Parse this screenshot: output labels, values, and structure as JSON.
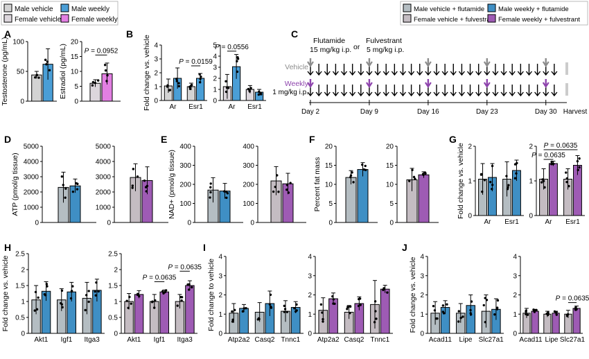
{
  "colors": {
    "male_vehicle": "#d3d3d3",
    "male_weekly": "#4a9ed6",
    "female_vehicle": "#dcd6dc",
    "female_weekly": "#e27fe2",
    "flut_vehicle": "#b4bdc2",
    "flut_weekly": "#3f8fc4",
    "fulv_vehicle": "#c4bcc2",
    "fulv_weekly": "#9e5bb4",
    "vehicle_arrow": "#8c8c8c",
    "weekly_arrow": "#8e44ad"
  },
  "legend_left": [
    {
      "label": "Male vehicle",
      "color": "#d3d3d3"
    },
    {
      "label": "Male weekly",
      "color": "#4a9ed6"
    },
    {
      "label": "Female vehicle",
      "color": "#dcd6dc"
    },
    {
      "label": "Female weekly",
      "color": "#e27fe2"
    }
  ],
  "legend_right": [
    {
      "label": "Male vehicle + flutamide",
      "color": "#b4bdc2"
    },
    {
      "label": "Male weekly + flutamide",
      "color": "#3f8fc4"
    },
    {
      "label": "Female vehicle + fulvestrant",
      "color": "#c4bcc2"
    },
    {
      "label": "Female weekly + fulvestrant",
      "color": "#9e5bb4"
    }
  ],
  "panel_C": {
    "letter": "C",
    "drug1_lines": [
      "Flutamide",
      "15 mg/kg i.p."
    ],
    "or": "or",
    "drug2_lines": [
      "Fulvestrant",
      "5 mg/kg i.p."
    ],
    "vehicle_label": "Vehicle",
    "weekly_label": "Weekly",
    "weekly_dose": "1 mg/kg i.p.",
    "days": [
      "Day 2",
      "Day 9",
      "Day 16",
      "Day 23",
      "Day 30"
    ],
    "harvest": "Harvest"
  },
  "chart_data": [
    {
      "panel": "A",
      "type": "bar",
      "ylabel": "Testosterone (pg/mL)",
      "ylim": [
        0,
        100
      ],
      "yticks": [
        0,
        50,
        100
      ],
      "categories": [
        ""
      ],
      "series": [
        {
          "values": [
            44
          ],
          "err": [
            6
          ],
          "colorKey": "male_vehicle"
        },
        {
          "values": [
            62
          ],
          "err": [
            26
          ],
          "colorKey": "male_weekly"
        }
      ],
      "annotations": []
    },
    {
      "panel": "A",
      "type": "bar",
      "ylabel": "Estradiol (pg/mL)",
      "ylim": [
        0,
        20
      ],
      "yticks": [
        0,
        5,
        10,
        15,
        20
      ],
      "categories": [
        ""
      ],
      "series": [
        {
          "values": [
            6
          ],
          "err": [
            1.2
          ],
          "colorKey": "female_vehicle"
        },
        {
          "values": [
            9.2
          ],
          "err": [
            3.6
          ],
          "colorKey": "female_weekly"
        }
      ],
      "annotations": [
        {
          "text": "P = 0.0952",
          "italicP": true,
          "y": 15.5
        }
      ]
    },
    {
      "panel": "B",
      "type": "bar",
      "ylabel": "Fold change vs. vehicle",
      "ylim": [
        0,
        4
      ],
      "yticks": [
        0,
        1,
        2,
        3,
        4
      ],
      "categories": [
        "Ar",
        "Esr1"
      ],
      "series": [
        {
          "values": [
            1.05,
            1.0
          ],
          "err": [
            0.5,
            0.25
          ],
          "colorKey": "male_vehicle"
        },
        {
          "values": [
            1.6,
            1.6
          ],
          "err": [
            0.75,
            0.35
          ],
          "colorKey": "male_weekly"
        }
      ],
      "annotations": [
        {
          "text": "P = 0.0159",
          "italicP": true,
          "y": 2.5,
          "cat": 1
        }
      ]
    },
    {
      "panel": "B",
      "type": "bar",
      "ylabel": "",
      "ylim": [
        0,
        5
      ],
      "yticks": [
        0,
        1,
        2,
        3,
        4,
        5
      ],
      "categories": [
        "Ar",
        "Esr1"
      ],
      "series": [
        {
          "values": [
            1.25,
            1.0
          ],
          "err": [
            1.1,
            0.35
          ],
          "colorKey": "female_vehicle"
        },
        {
          "values": [
            3.05,
            0.75
          ],
          "err": [
            1.1,
            0.25
          ],
          "colorKey": "male_weekly"
        }
      ],
      "annotations": [
        {
          "text": "P = 0.0556",
          "italicP": true,
          "y": 4.45,
          "cat": 0
        }
      ]
    },
    {
      "panel": "D",
      "type": "bar",
      "ylabel": "ATP (pmol/g tissue)",
      "ylim": [
        0,
        5000
      ],
      "yticks": [
        0,
        1000,
        2000,
        3000,
        4000,
        5000
      ],
      "categories": [
        ""
      ],
      "series": [
        {
          "values": [
            2300
          ],
          "err": [
            1000
          ],
          "colorKey": "flut_vehicle"
        },
        {
          "values": [
            2400
          ],
          "err": [
            450
          ],
          "colorKey": "flut_weekly"
        }
      ],
      "annotations": []
    },
    {
      "panel": "D",
      "type": "bar",
      "ylabel": "",
      "ylim": [
        0,
        5000
      ],
      "yticks": [
        0,
        1000,
        2000,
        3000,
        4000,
        5000
      ],
      "categories": [
        ""
      ],
      "series": [
        {
          "values": [
            2950
          ],
          "err": [
            900
          ],
          "colorKey": "fulv_vehicle"
        },
        {
          "values": [
            2750
          ],
          "err": [
            900
          ],
          "colorKey": "fulv_weekly"
        }
      ],
      "annotations": []
    },
    {
      "panel": "E",
      "type": "bar",
      "ylabel": "NAD+ (pmol/g tissue)",
      "ylim": [
        0,
        400
      ],
      "yticks": [
        0,
        100,
        200,
        300,
        400
      ],
      "categories": [
        ""
      ],
      "series": [
        {
          "values": [
            170
          ],
          "err": [
            65
          ],
          "colorKey": "flut_vehicle"
        },
        {
          "values": [
            165
          ],
          "err": [
            40
          ],
          "colorKey": "flut_weekly"
        }
      ],
      "annotations": []
    },
    {
      "panel": "E",
      "type": "bar",
      "ylabel": "",
      "ylim": [
        0,
        400
      ],
      "yticks": [
        0,
        100,
        200,
        300,
        400
      ],
      "categories": [
        ""
      ],
      "series": [
        {
          "values": [
            218
          ],
          "err": [
            75
          ],
          "colorKey": "fulv_vehicle"
        },
        {
          "values": [
            203
          ],
          "err": [
            55
          ],
          "colorKey": "fulv_weekly"
        }
      ],
      "annotations": []
    },
    {
      "panel": "F",
      "type": "bar",
      "ylabel": "Percent fat mass",
      "ylim": [
        0,
        20
      ],
      "yticks": [
        0,
        5,
        10,
        15,
        20
      ],
      "categories": [
        ""
      ],
      "series": [
        {
          "values": [
            11.8
          ],
          "err": [
            1.8
          ],
          "colorKey": "flut_vehicle"
        },
        {
          "values": [
            13.9
          ],
          "err": [
            1.8
          ],
          "colorKey": "flut_weekly"
        }
      ],
      "annotations": []
    },
    {
      "panel": "F",
      "type": "bar",
      "ylabel": "",
      "ylim": [
        0,
        20
      ],
      "yticks": [
        0,
        5,
        10,
        15,
        20
      ],
      "categories": [
        ""
      ],
      "series": [
        {
          "values": [
            11.2
          ],
          "err": [
            3.0
          ],
          "colorKey": "fulv_vehicle"
        },
        {
          "values": [
            12.5
          ],
          "err": [
            0.8
          ],
          "colorKey": "fulv_weekly"
        }
      ],
      "annotations": []
    },
    {
      "panel": "G",
      "type": "bar",
      "ylabel": "Fold change vs. vehicle",
      "ylim": [
        0,
        2
      ],
      "yticks": [
        0,
        1,
        2
      ],
      "categories": [
        "Ar",
        "Esr1"
      ],
      "series": [
        {
          "values": [
            1.05,
            1.05
          ],
          "err": [
            0.45,
            0.5
          ],
          "colorKey": "flut_vehicle"
        },
        {
          "values": [
            1.1,
            1.3
          ],
          "err": [
            0.4,
            0.3
          ],
          "colorKey": "flut_weekly"
        }
      ],
      "annotations": []
    },
    {
      "panel": "G",
      "type": "bar",
      "ylabel": "",
      "ylim": [
        0,
        2
      ],
      "yticks": [
        0,
        1,
        2
      ],
      "categories": [
        "Ar",
        "Esr1"
      ],
      "series": [
        {
          "values": [
            1.05,
            1.05
          ],
          "err": [
            0.3,
            0.3
          ],
          "colorKey": "fulv_vehicle"
        },
        {
          "values": [
            1.5,
            1.45
          ],
          "err": [
            0.07,
            0.28
          ],
          "colorKey": "fulv_weekly"
        }
      ],
      "annotations": [
        {
          "text": "P = 0.0635",
          "italicP": true,
          "y": 1.62,
          "cat": 0
        },
        {
          "text": "P = 0.0635",
          "italicP": true,
          "y": 1.9,
          "span": [
            0,
            1
          ]
        }
      ]
    },
    {
      "panel": "H",
      "type": "bar",
      "ylabel": "Fold change vs. vehicle",
      "ylim": [
        0,
        2.5
      ],
      "yticks": [
        0,
        0.5,
        1,
        1.5,
        2,
        2.5
      ],
      "categories": [
        "Akt1",
        "Igf1",
        "Itga3"
      ],
      "series": [
        {
          "values": [
            1.05,
            1.05,
            1.1
          ],
          "err": [
            0.45,
            0.35,
            0.5
          ],
          "colorKey": "flut_vehicle"
        },
        {
          "values": [
            1.32,
            1.3,
            1.35
          ],
          "err": [
            0.3,
            0.3,
            0.35
          ],
          "colorKey": "flut_weekly"
        }
      ],
      "annotations": []
    },
    {
      "panel": "H",
      "type": "bar",
      "ylabel": "",
      "ylim": [
        0,
        2.5
      ],
      "yticks": [
        0,
        0.5,
        1,
        1.5,
        2,
        2.5
      ],
      "categories": [
        "Akt1",
        "Igf1",
        "Itga3"
      ],
      "series": [
        {
          "values": [
            1.0,
            1.0,
            1.0
          ],
          "err": [
            0.25,
            0.22,
            0.22
          ],
          "colorKey": "fulv_vehicle"
        },
        {
          "values": [
            1.22,
            1.3,
            1.5
          ],
          "err": [
            0.12,
            0.06,
            0.15
          ],
          "colorKey": "fulv_weekly"
        }
      ],
      "annotations": [
        {
          "text": "P = 0.0635",
          "italicP": true,
          "y": 1.62,
          "cat": 1
        },
        {
          "text": "P = 0.0635",
          "italicP": true,
          "y": 1.95,
          "cat": 2
        }
      ]
    },
    {
      "panel": "I",
      "type": "bar",
      "ylabel": "Fold change to vehicle",
      "ylim": [
        0,
        4
      ],
      "yticks": [
        0,
        1,
        2,
        3,
        4
      ],
      "categories": [
        "Atp2a2",
        "Casq2",
        "Tnnc1"
      ],
      "series": [
        {
          "values": [
            1.05,
            1.1,
            1.15
          ],
          "err": [
            0.5,
            0.5,
            0.55
          ],
          "colorKey": "flut_vehicle"
        },
        {
          "values": [
            1.3,
            1.55,
            1.35
          ],
          "err": [
            0.2,
            0.65,
            0.3
          ],
          "colorKey": "flut_weekly"
        }
      ],
      "annotations": []
    },
    {
      "panel": "I",
      "type": "bar",
      "ylabel": "",
      "ylim": [
        0,
        4
      ],
      "yticks": [
        0,
        1,
        2,
        3,
        4
      ],
      "categories": [
        "Atp2a2",
        "Casq2",
        "Tnnc1"
      ],
      "series": [
        {
          "values": [
            1.2,
            1.1,
            1.5
          ],
          "err": [
            0.65,
            0.35,
            1.25
          ],
          "colorKey": "fulv_vehicle"
        },
        {
          "values": [
            1.8,
            1.55,
            2.3
          ],
          "err": [
            0.3,
            0.35,
            0.2
          ],
          "colorKey": "fulv_weekly"
        }
      ],
      "annotations": []
    },
    {
      "panel": "J",
      "type": "bar",
      "ylabel": "Fold change vs. vehicle",
      "ylim": [
        0,
        4
      ],
      "yticks": [
        0,
        1,
        2,
        3,
        4
      ],
      "categories": [
        "Acad11",
        "Lipe",
        "Slc27a1"
      ],
      "series": [
        {
          "values": [
            1.05,
            1.05,
            1.15
          ],
          "err": [
            0.6,
            0.5,
            0.85
          ],
          "colorKey": "flut_vehicle"
        },
        {
          "values": [
            1.35,
            1.45,
            1.25
          ],
          "err": [
            0.35,
            0.55,
            0.55
          ],
          "colorKey": "flut_weekly"
        }
      ],
      "annotations": []
    },
    {
      "panel": "J",
      "type": "bar",
      "ylabel": "",
      "ylim": [
        0,
        4
      ],
      "yticks": [
        0,
        1,
        2,
        3,
        4
      ],
      "categories": [
        "Acad11",
        "Lipe",
        "Slc27a1"
      ],
      "series": [
        {
          "values": [
            1.05,
            1.0,
            1.0
          ],
          "err": [
            0.25,
            0.15,
            0.2
          ],
          "colorKey": "fulv_vehicle"
        },
        {
          "values": [
            1.15,
            1.05,
            1.3
          ],
          "err": [
            0.1,
            0.1,
            0.12
          ],
          "colorKey": "fulv_weekly"
        }
      ],
      "annotations": [
        {
          "text": "P = 0.0635",
          "italicP": true,
          "y": 1.6,
          "cat": 2
        }
      ]
    }
  ]
}
